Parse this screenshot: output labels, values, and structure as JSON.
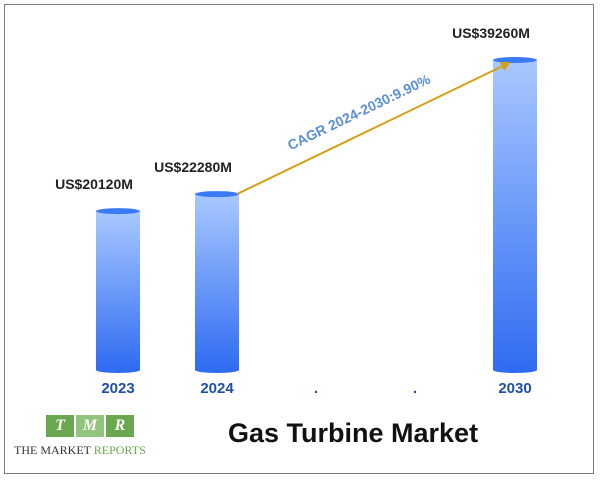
{
  "chart_data": {
    "type": "bar",
    "categories": [
      "2023",
      "2024",
      ".",
      ".",
      "2030"
    ],
    "values": [
      20120,
      22280,
      null,
      null,
      39260
    ],
    "value_labels": [
      "US$20120M",
      "US$22280M",
      "",
      "",
      "US$39260M"
    ],
    "annotation": "CAGR 2024-2030:9.90%",
    "colors": {
      "bar_top": "#a9c8ff",
      "bar_bottom": "#2f6cf2",
      "bar_cap": "#3a7af5",
      "arrow": "#d4a017",
      "category_label": "#1f4fa8",
      "annotation": "#5b8fd9"
    }
  },
  "footer": {
    "logo_letters": [
      "T",
      "M",
      "R"
    ],
    "logo_text_dark": "THE MARKET ",
    "logo_text_green": "REPORTS",
    "caption": "Gas Turbine Market"
  }
}
